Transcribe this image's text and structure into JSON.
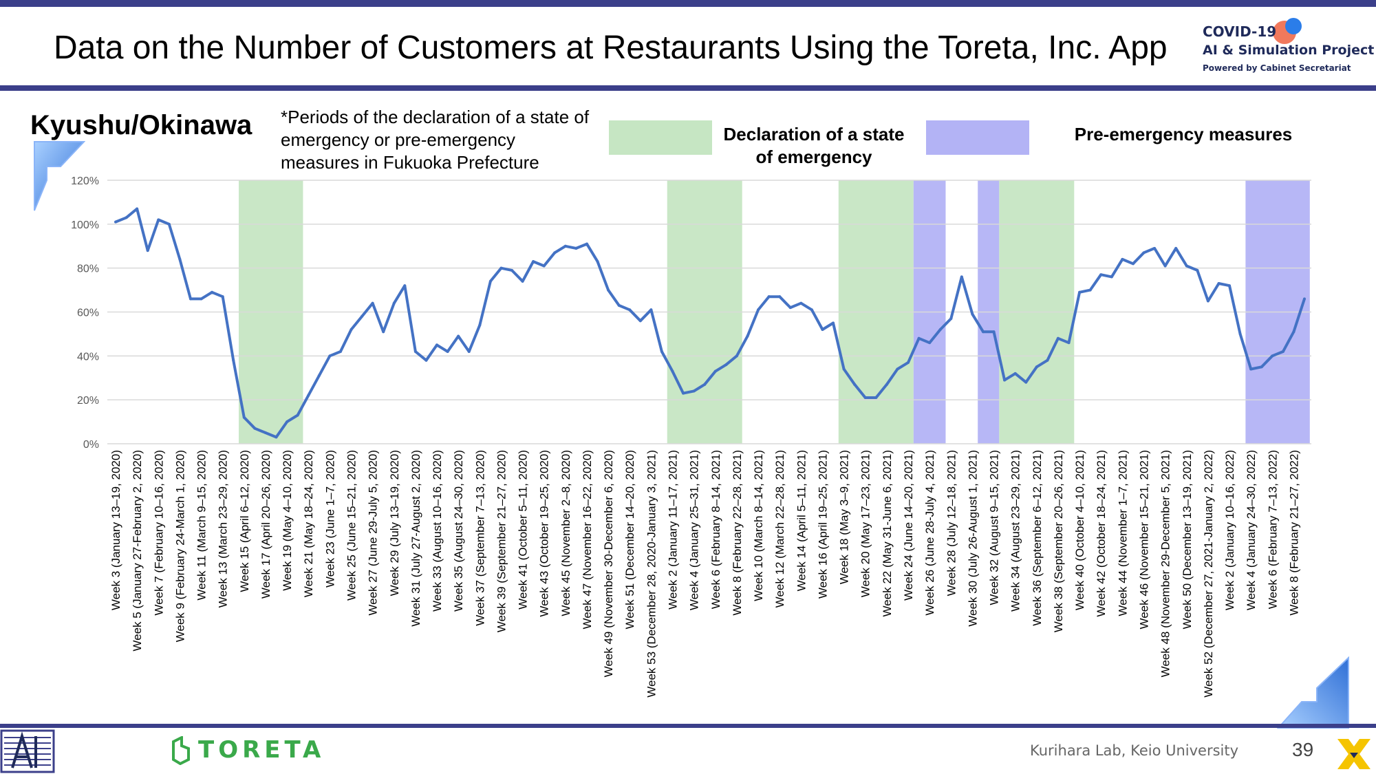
{
  "header": {
    "title": "Data on the Number of Customers at Restaurants Using the Toreta, Inc. App",
    "logo": {
      "line1": "COVID-19",
      "line2": "AI & Simulation Project",
      "line3": "Powered by Cabinet Secretariat"
    }
  },
  "region": "Kyushu/Okinawa",
  "note": "*Periods of the declaration of a state of emergency or pre-emergency measures in Fukuoka Prefecture",
  "legend": {
    "emergency": "Declaration of a state of emergency",
    "pre_emergency": "Pre-emergency measures"
  },
  "colors": {
    "line": "#4472c4",
    "emergency": "#c6e6c3",
    "pre_emergency": "#b3b3f5",
    "gridline": "#d9d9d9",
    "bar": "#3b3f8a"
  },
  "footer": {
    "brand": "TORETA",
    "lab": "Kurihara Lab, Keio University",
    "page": "39"
  },
  "chart_data": {
    "type": "line",
    "y_unit": "percent",
    "ylim": [
      0,
      120
    ],
    "yticks": [
      "0%",
      "20%",
      "40%",
      "60%",
      "80%",
      "100%",
      "120%"
    ],
    "grid": true,
    "x_labels": [
      "Week 3 (January 13–19, 2020)",
      "Week 5 (January 27-February 2, 2020)",
      "Week 7 (February 10–16, 2020)",
      "Week 9 (February 24-March 1, 2020)",
      "Week 11 (March 9–15, 2020)",
      "Week 13 (March 23–29, 2020)",
      "Week 15 (April 6–12, 2020)",
      "Week 17 (April 20–26, 2020)",
      "Week 19 (May 4–10, 2020)",
      "Week 21 (May 18–24, 2020)",
      "Week 23 (June 1–7, 2020)",
      "Week 25 (June 15–21, 2020)",
      "Week 27 (June 29-July 5, 2020)",
      "Week 29 (July 13–19, 2020)",
      "Week 31 (July 27-August 2, 2020)",
      "Week 33 (August 10–16, 2020)",
      "Week 35 (August 24–30, 2020)",
      "Week 37 (September 7–13, 2020)",
      "Week 39 (September 21–27, 2020)",
      "Week 41 (October 5–11, 2020)",
      "Week 43 (October 19–25, 2020)",
      "Week 45 (November 2–8, 2020)",
      "Week 47 (November 16–22, 2020)",
      "Week 49 (November 30-December 6, 2020)",
      "Week 51 (December 14–20, 2020)",
      "Week 53 (December 28, 2020-January 3, 2021)",
      "Week 2 (January 11–17, 2021)",
      "Week 4 (January 25–31, 2021)",
      "Week 6 (February 8–14, 2021)",
      "Week 8 (February 22–28, 2021)",
      "Week 10 (March 8–14, 2021)",
      "Week 12 (March 22–28, 2021)",
      "Week 14 (April 5–11, 2021)",
      "Week 16 (April 19–25, 2021)",
      "Week 18 (May 3–9, 2021)",
      "Week 20 (May 17–23, 2021)",
      "Week 22 (May 31-June 6, 2021)",
      "Week 24 (June 14–20, 2021)",
      "Week 26 (June 28-July 4, 2021)",
      "Week 28 (July 12–18, 2021)",
      "Week 30 (July 26-August 1, 2021)",
      "Week 32 (August 9–15, 2021)",
      "Week 34 (August 23–29, 2021)",
      "Week 36 (September 6–12, 2021)",
      "Week 38 (September 20–26, 2021)",
      "Week 40 (October 4–10, 2021)",
      "Week 42 (October 18–24, 2021)",
      "Week 44 (November 1–7, 2021)",
      "Week 46 (November 15–21, 2021)",
      "Week 48 (November 29-December 5, 2021)",
      "Week 50 (December 13–19, 2021)",
      "Week 52 (December 27, 2021-January 2, 2022)",
      "Week 2 (January 10–16, 2022)",
      "Week 4 (January 24–30, 2022)",
      "Week 6 (February 7–13, 2022)",
      "Week 8 (February 21–27, 2022)"
    ],
    "series": [
      {
        "values": [
          101,
          103,
          107,
          88,
          102,
          100,
          84,
          66,
          66,
          69,
          67,
          38,
          12,
          7,
          5,
          3,
          10,
          13,
          22,
          31,
          40,
          42,
          52,
          58,
          64,
          51,
          64,
          72,
          42,
          38,
          45,
          42,
          49,
          42,
          54,
          74,
          80,
          79,
          74,
          83,
          81,
          87,
          90,
          89,
          91,
          83,
          70,
          63,
          61,
          56,
          61,
          42,
          33,
          23,
          24,
          27,
          33,
          36,
          40,
          49,
          61,
          67,
          67,
          62,
          64,
          61,
          52,
          55,
          34,
          27,
          21,
          21,
          27,
          34,
          37,
          48,
          46,
          52,
          57,
          76,
          59,
          51,
          51,
          29,
          32,
          28,
          35,
          38,
          48,
          46,
          69,
          70,
          77,
          76,
          84,
          82,
          87,
          89,
          81,
          89,
          81,
          79,
          65,
          73,
          72,
          50,
          34,
          35,
          40,
          42,
          51,
          66
        ]
      }
    ],
    "shaded_periods": [
      {
        "type": "emergency",
        "start": 11.5,
        "end": 17.5
      },
      {
        "type": "emergency",
        "start": 51.5,
        "end": 58.5
      },
      {
        "type": "emergency",
        "start": 67.5,
        "end": 74.5
      },
      {
        "type": "pre_emergency",
        "start": 74.5,
        "end": 77.5
      },
      {
        "type": "pre_emergency",
        "start": 80.5,
        "end": 82.5
      },
      {
        "type": "emergency",
        "start": 82.5,
        "end": 89.5
      },
      {
        "type": "pre_emergency",
        "start": 105.5,
        "end": 111.5
      }
    ]
  }
}
